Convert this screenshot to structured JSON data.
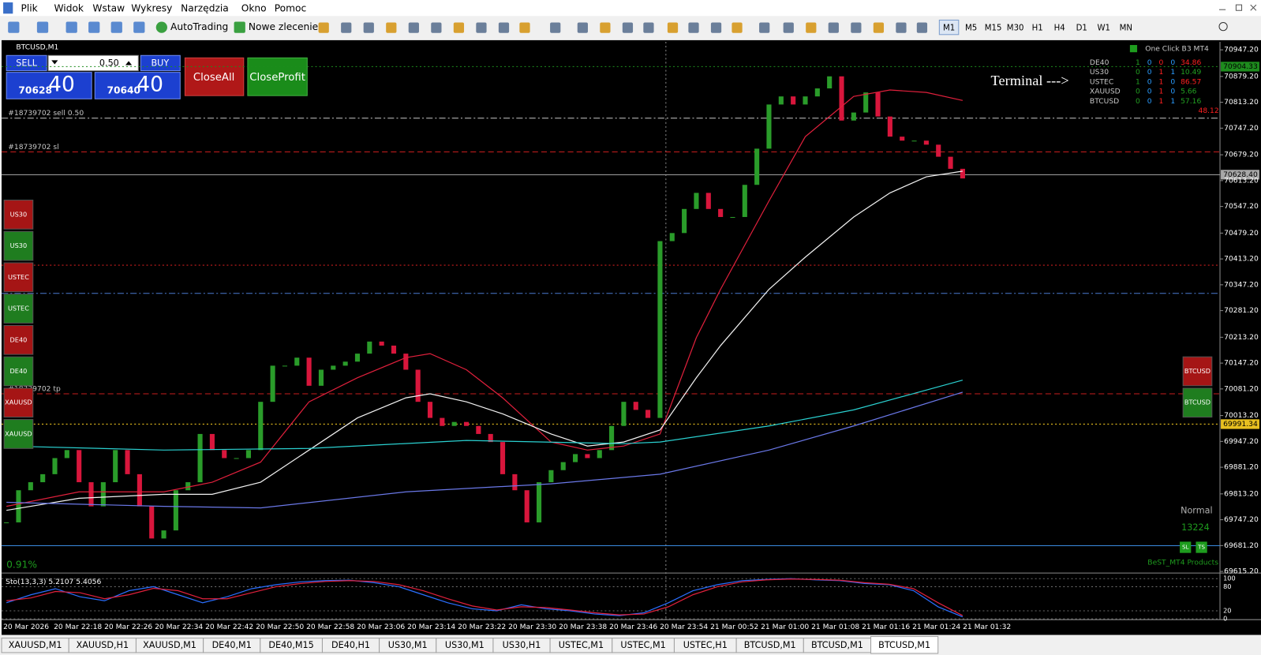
{
  "window": {
    "menu": [
      "Plik",
      "Widok",
      "Wstaw",
      "Wykresy",
      "Narzędzia",
      "Okno",
      "Pomoc"
    ],
    "toolbar": {
      "autotrading": "AutoTrading",
      "new_order": "Nowe zlecenie",
      "timeframes": [
        "M1",
        "M5",
        "M15",
        "M30",
        "H1",
        "H4",
        "D1",
        "W1",
        "MN"
      ],
      "active_timeframe": 0
    },
    "tabs": [
      "XAUUSD,M1",
      "XAUUSD,H1",
      "XAUUSD,M1",
      "DE40,M1",
      "DE40,M15",
      "DE40,H1",
      "US30,M1",
      "US30,M1",
      "US30,H1",
      "USTEC,M1",
      "USTEC,M1",
      "USTEC,H1",
      "BTCUSD,M1",
      "BTCUSD,M1",
      "BTCUSD,M1"
    ],
    "active_tab": 14
  },
  "chart_window": {
    "title": "BTCUSD,M1",
    "trade_panel": {
      "sell": "SELL",
      "lot": "0.50",
      "buy": "BUY",
      "bid_main": "70628",
      "bid_pips": "40",
      "ask_main": "70640",
      "ask_pips": "40",
      "close_all": "CloseAll",
      "close_profit": "CloseProfit"
    },
    "left_buttons": [
      {
        "label": "US30",
        "color": "#a51515"
      },
      {
        "label": "US30",
        "color": "#1f7d1f"
      },
      {
        "label": "USTEC",
        "color": "#a51515"
      },
      {
        "label": "USTEC",
        "color": "#1f7d1f"
      },
      {
        "label": "DE40",
        "color": "#a51515"
      },
      {
        "label": "DE40",
        "color": "#1f7d1f"
      },
      {
        "label": "XAUUSD",
        "color": "#a51515"
      },
      {
        "label": "XAUUSD",
        "color": "#1f7d1f"
      }
    ],
    "right_buttons": [
      {
        "label": "BTCUSD",
        "color": "#a51515"
      },
      {
        "label": "BTCUSD",
        "color": "#1f7d1f"
      }
    ],
    "terminal_note": "Terminal --->",
    "panel": {
      "title": "One Click B3 MT4",
      "cell_colors": [
        "#22a022",
        "#2a9cff",
        "#ff2020",
        "#2a9cff"
      ],
      "rows": [
        {
          "symbol": "DE40",
          "cells": [
            "1",
            "0",
            "0",
            "0"
          ],
          "profit": "34.86",
          "profit_color": "#ff2020"
        },
        {
          "symbol": "US30",
          "cells": [
            "0",
            "0",
            "1",
            "1"
          ],
          "profit": "10.49",
          "profit_color": "#22a022"
        },
        {
          "symbol": "USTEC",
          "cells": [
            "1",
            "0",
            "1",
            "0"
          ],
          "profit": "86.57",
          "profit_color": "#ff2020"
        },
        {
          "symbol": "XAUUSD",
          "cells": [
            "0",
            "0",
            "1",
            "0"
          ],
          "profit": "5.66",
          "profit_color": "#22a022"
        },
        {
          "symbol": "BTCUSD",
          "cells": [
            "0",
            "0",
            "1",
            "1"
          ],
          "profit": "57.16",
          "profit_color": "#22a022"
        }
      ],
      "total": "48.12",
      "total_color": "#ff2020"
    },
    "mode": "Normal",
    "counter": "13224",
    "sl": "SL",
    "ts": "TS",
    "brand": "BeST_MT4 Products",
    "percent": "0.91%"
  },
  "chart_data": {
    "type": "candlestick",
    "up_color": "#2a9c2a",
    "down_color": "#d8163c",
    "closes": [
      69740.4,
      69822.5,
      69843.0,
      69863.5,
      69904.6,
      69925.1,
      69843.0,
      69781.4,
      69843.0,
      69925.1,
      69863.5,
      69781.4,
      69699.3,
      69719.9,
      69822.5,
      69843.0,
      69966.2,
      69925.1,
      69904.6,
      69904.6,
      69925.1,
      70048.3,
      70140.6,
      70140.6,
      70161.1,
      70089.3,
      70130.3,
      70140.6,
      70150.9,
      70171.4,
      70202.2,
      70191.9,
      70171.4,
      70130.3,
      70048.3,
      70007.2,
      69986.7,
      69996.9,
      69986.7,
      69966.2,
      69945.6,
      69863.5,
      69822.5,
      69740.4,
      69843.0,
      69873.8,
      69894.3,
      69914.8,
      69904.6,
      69925.1,
      69986.7,
      70048.3,
      70027.7,
      70007.2,
      70458.7,
      70479.3,
      70540.8,
      70581.9,
      70540.8,
      70520.3,
      70520.3,
      70602.4,
      70694.8,
      70807.6,
      70828.2,
      70807.6,
      70828.2,
      70848.7,
      70879.5,
      70766.6,
      70787.1,
      70838.4,
      70776.9,
      70725.5,
      70715.3,
      70715.3,
      70705.0,
      70674.2,
      70643.4,
      70618.8
    ],
    "x_labels": [
      "20 Mar 2026",
      "20 Mar 22:18",
      "20 Mar 22:26",
      "20 Mar 22:34",
      "20 Mar 22:42",
      "20 Mar 22:50",
      "20 Mar 22:58",
      "20 Mar 23:06",
      "20 Mar 23:14",
      "20 Mar 23:22",
      "20 Mar 23:30",
      "20 Mar 23:38",
      "20 Mar 23:46",
      "20 Mar 23:54",
      "21 Mar 00:52",
      "21 Mar 01:00",
      "21 Mar 01:08",
      "21 Mar 01:16",
      "21 Mar 01:24",
      "21 Mar 01:32"
    ],
    "ylim": [
      69615.2,
      70947.2
    ],
    "yticks": [
      {
        "value": 69615.2,
        "label": "69615.20"
      },
      {
        "value": 69681.2,
        "label": "69681.20"
      },
      {
        "value": 69747.2,
        "label": "69747.20"
      },
      {
        "value": 69813.2,
        "label": "69813.20"
      },
      {
        "value": 69881.2,
        "label": "69881.20"
      },
      {
        "value": 69947.2,
        "label": "69947.20"
      },
      {
        "value": 70013.2,
        "label": "70013.20"
      },
      {
        "value": 70081.2,
        "label": "70081.20"
      },
      {
        "value": 70147.2,
        "label": "70147.20"
      },
      {
        "value": 70213.2,
        "label": "70213.20"
      },
      {
        "value": 70281.2,
        "label": "70281.20"
      },
      {
        "value": 70347.2,
        "label": "70347.20"
      },
      {
        "value": 70413.2,
        "label": "70413.20"
      },
      {
        "value": 70479.2,
        "label": "70479.20"
      },
      {
        "value": 70547.2,
        "label": "70547.20"
      },
      {
        "value": 70613.2,
        "label": "70613.20"
      },
      {
        "value": 70679.2,
        "label": "70679.20"
      },
      {
        "value": 70747.2,
        "label": "70747.20"
      },
      {
        "value": 70813.2,
        "label": "70813.20"
      },
      {
        "value": 70879.2,
        "label": "70879.20"
      },
      {
        "value": 70947.2,
        "label": "70947.20"
      }
    ],
    "series": [
      {
        "color": "#e0203c",
        "x": [
          0,
          6,
          13,
          17,
          21,
          25,
          29,
          33,
          35,
          38,
          41,
          45,
          48,
          51,
          54,
          57,
          59,
          63,
          66,
          70,
          73,
          76,
          79
        ],
        "values": [
          69781.4,
          69818.4,
          69818.4,
          69843.0,
          69894.3,
          70048.3,
          70109.8,
          70161.1,
          70171.4,
          70130.3,
          70058.5,
          69945.6,
          69925.1,
          69935.4,
          69966.2,
          70212.4,
          70335.6,
          70561.3,
          70725.5,
          70828.2,
          70844.6,
          70838.4,
          70817.9
        ]
      },
      {
        "color": "#f2f2f2",
        "x": [
          0,
          6,
          13,
          17,
          21,
          25,
          29,
          33,
          35,
          38,
          41,
          45,
          48,
          51,
          54,
          57,
          59,
          63,
          66,
          70,
          73,
          76,
          79
        ],
        "values": [
          69771.2,
          69802.0,
          69812.2,
          69812.2,
          69843.0,
          69925.1,
          70007.2,
          70058.5,
          70068.8,
          70048.3,
          70017.5,
          69966.2,
          69935.4,
          69945.6,
          69976.4,
          70109.8,
          70191.9,
          70335.6,
          70417.7,
          70520.3,
          70581.9,
          70622.9,
          70637.3
        ]
      },
      {
        "color": "#2ad0d0",
        "x": [
          0,
          13,
          25,
          38,
          51,
          54,
          63,
          70,
          79
        ],
        "values": [
          69935.4,
          69925.1,
          69929.2,
          69949.7,
          69941.5,
          69945.6,
          69986.7,
          70027.7,
          70103.7
        ]
      },
      {
        "color": "#6a78e8",
        "x": [
          0,
          13,
          21,
          33,
          45,
          54,
          63,
          70,
          79
        ],
        "values": [
          69791.7,
          69781.4,
          69777.3,
          69818.4,
          69838.9,
          69863.5,
          69925.1,
          69986.7,
          70072.9
        ]
      }
    ],
    "levels": [
      {
        "value": 70904.33,
        "axis_label": "70904.33",
        "color": "#1e8c1e",
        "style": "dot"
      },
      {
        "value": 70772.7,
        "text": "#18739702 sell 0.50",
        "color": "#c8c8c8",
        "style": "dashdot"
      },
      {
        "value": 70686.5,
        "text": "#18739702 sl",
        "color": "#c81e1e",
        "style": "dash"
      },
      {
        "value": 70628.4,
        "axis_label": "70628.40",
        "color": "#a8a8a8",
        "style": "solid"
      },
      {
        "value": 70397.2,
        "color": "#c81e1e",
        "style": "dot"
      },
      {
        "value": 70325.3,
        "color": "#4a7bd0",
        "style": "dashdot"
      },
      {
        "value": 70068.8,
        "text": "#18739702 tp",
        "color": "#c81e1e",
        "style": "dash"
      },
      {
        "value": 69991.34,
        "axis_label": "69991.34",
        "color": "#e8c020",
        "style": "dot"
      },
      {
        "value": 69680.9,
        "color": "#3a8be0",
        "style": "solid"
      }
    ]
  },
  "stochastic": {
    "label": "Sto(13,3,3) 5.2107 5.4056",
    "ylim": [
      0,
      100
    ],
    "yticks": [
      0,
      20,
      80,
      100
    ],
    "series": [
      {
        "color": "#2a6fff",
        "values": [
          40,
          60,
          75,
          55,
          45,
          70,
          80,
          60,
          40,
          55,
          75,
          85,
          92,
          95,
          96,
          90,
          80,
          60,
          40,
          25,
          20,
          35,
          25,
          20,
          12,
          8,
          15,
          40,
          70,
          85,
          95,
          98,
          100,
          97,
          95,
          88,
          85,
          70,
          30,
          5
        ]
      },
      {
        "color": "#e0203c",
        "values": [
          45,
          52,
          68,
          65,
          50,
          60,
          76,
          70,
          50,
          50,
          65,
          80,
          88,
          93,
          95,
          93,
          85,
          70,
          50,
          32,
          22,
          30,
          28,
          22,
          15,
          10,
          12,
          30,
          60,
          80,
          92,
          97,
          99,
          98,
          96,
          90,
          86,
          75,
          40,
          8
        ]
      }
    ]
  }
}
